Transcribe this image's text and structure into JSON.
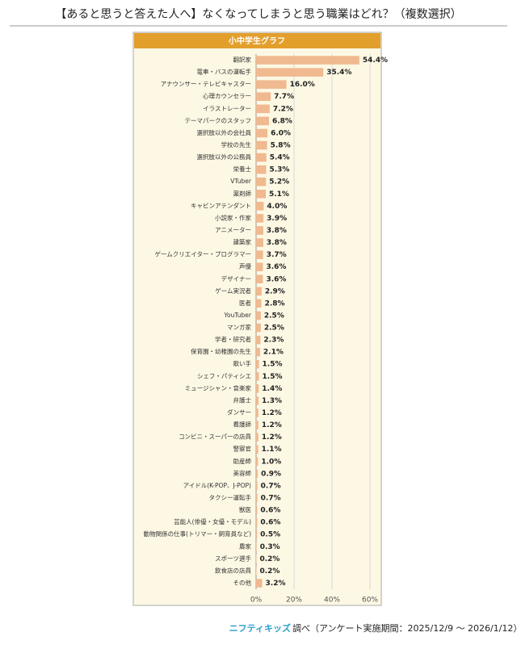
{
  "chart_data": {
    "type": "bar",
    "orientation": "horizontal",
    "title": "【あると思うと答えた人へ】なくなってしまうと思う職業はどれ？（複数選択）",
    "subtitle": "小中学生グラフ",
    "categories": [
      "翻訳家",
      "電車・バスの運転手",
      "アナウンサー・テレビキャスター",
      "心理カウンセラー",
      "イラストレーター",
      "テーマパークのスタッフ",
      "選択肢以外の会社員",
      "学校の先生",
      "選択肢以外の公務員",
      "栄養士",
      "VTuber",
      "薬剤師",
      "キャビンアテンダント",
      "小説家・作家",
      "アニメーター",
      "建築家",
      "ゲームクリエイター・プログラマー",
      "声優",
      "デザイナー",
      "ゲーム実況者",
      "医者",
      "YouTuber",
      "マンガ家",
      "学者・研究者",
      "保育園・幼稚園の先生",
      "歌い手",
      "シェフ・パティシエ",
      "ミュージシャン・音楽家",
      "弁護士",
      "ダンサー",
      "看護師",
      "コンビニ・スーパーの店員",
      "警察官",
      "助産師",
      "美容師",
      "アイドル(K-POP、J-POP)",
      "タクシー運転手",
      "獣医",
      "芸能人(俳優・女優・モデル)",
      "動物関係の仕事(トリマー・飼育員など)",
      "農家",
      "スポーツ選手",
      "飲食店の店員",
      "その他"
    ],
    "values": [
      54.4,
      35.4,
      16.0,
      7.7,
      7.2,
      6.8,
      6.0,
      5.8,
      5.4,
      5.3,
      5.2,
      5.1,
      4.0,
      3.9,
      3.8,
      3.8,
      3.7,
      3.6,
      3.6,
      2.9,
      2.8,
      2.5,
      2.5,
      2.3,
      2.1,
      1.5,
      1.5,
      1.4,
      1.3,
      1.2,
      1.2,
      1.2,
      1.1,
      1.0,
      0.9,
      0.7,
      0.7,
      0.6,
      0.6,
      0.5,
      0.3,
      0.2,
      0.2,
      3.2
    ],
    "value_labels": [
      "54.4%",
      "35.4%",
      "16.0%",
      "7.7%",
      "7.2%",
      "6.8%",
      "6.0%",
      "5.8%",
      "5.4%",
      "5.3%",
      "5.2%",
      "5.1%",
      "4.0%",
      "3.9%",
      "3.8%",
      "3.8%",
      "3.7%",
      "3.6%",
      "3.6%",
      "2.9%",
      "2.8%",
      "2.5%",
      "2.5%",
      "2.3%",
      "2.1%",
      "1.5%",
      "1.5%",
      "1.4%",
      "1.3%",
      "1.2%",
      "1.2%",
      "1.2%",
      "1.1%",
      "1.0%",
      "0.9%",
      "0.7%",
      "0.7%",
      "0.6%",
      "0.6%",
      "0.5%",
      "0.3%",
      "0.2%",
      "0.2%",
      "3.2%"
    ],
    "color": "#f0b98f",
    "xlim": [
      0,
      60
    ],
    "xticks": [
      {
        "value": 0,
        "label": "0%"
      },
      {
        "value": 20,
        "label": "20%"
      },
      {
        "value": 40,
        "label": "40%"
      },
      {
        "value": 60,
        "label": "60%"
      }
    ],
    "grid": true,
    "source_brand": "ニフティキッズ",
    "source": "調べ（アンケート実施期間：2025/12/9 ～ 2026/1/12）"
  }
}
